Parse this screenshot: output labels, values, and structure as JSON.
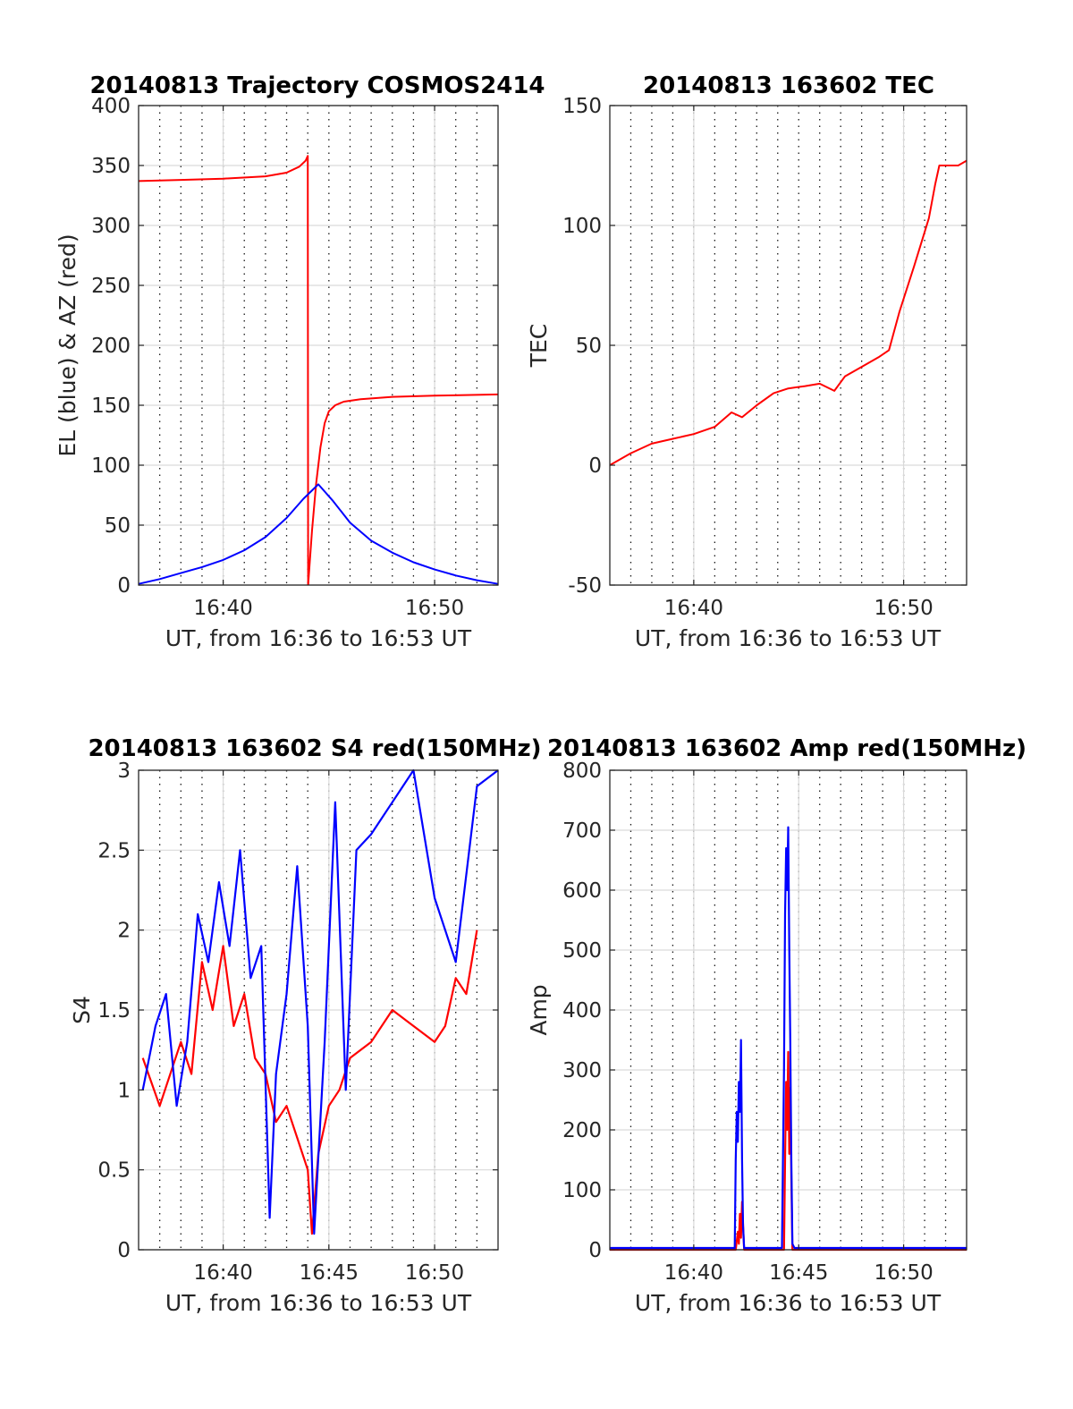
{
  "chart_data": [
    {
      "type": "line",
      "title": "20140813 Trajectory COSMOS2414",
      "xlabel": "UT, from 16:36 to 16:53 UT",
      "ylabel": "EL (blue) & AZ (red)",
      "xlim": [
        36,
        53
      ],
      "ylim": [
        0,
        400
      ],
      "xticks": [
        {
          "v": 40,
          "label": "16:40"
        },
        {
          "v": 50,
          "label": "16:50"
        }
      ],
      "yticks": [
        0,
        50,
        100,
        150,
        200,
        250,
        300,
        350,
        400
      ],
      "grid": "on",
      "series": [
        {
          "color": "#ff0000",
          "x": [
            36,
            38,
            40,
            42,
            43,
            43.6,
            43.9,
            44.0,
            44.02
          ],
          "y": [
            337,
            338,
            339,
            341,
            344,
            349,
            354,
            358,
            0
          ]
        },
        {
          "color": "#ff0000",
          "x": [
            44.02,
            44.2,
            44.4,
            44.6,
            44.8,
            45.0,
            45.3,
            45.7,
            46.5,
            48,
            50,
            53
          ],
          "y": [
            0,
            45,
            85,
            115,
            135,
            145,
            150,
            153,
            155,
            157,
            158,
            159
          ]
        },
        {
          "color": "#0000ff",
          "x": [
            36,
            37,
            38,
            39,
            40,
            41,
            42,
            43,
            43.8,
            44.5,
            45.2,
            46,
            47,
            48,
            49,
            50,
            51,
            52,
            53
          ],
          "y": [
            1,
            5,
            10,
            15,
            21,
            29,
            40,
            56,
            72,
            84,
            70,
            52,
            37,
            27,
            19,
            13,
            8,
            4,
            1
          ]
        }
      ]
    },
    {
      "type": "line",
      "title": "20140813 163602 TEC",
      "xlabel": "UT, from 16:36 to 16:53 UT",
      "ylabel": "TEC",
      "xlim": [
        36,
        53
      ],
      "ylim": [
        -50,
        150
      ],
      "xticks": [
        {
          "v": 40,
          "label": "16:40"
        },
        {
          "v": 50,
          "label": "16:50"
        }
      ],
      "yticks": [
        -50,
        0,
        50,
        100,
        150
      ],
      "grid": "on",
      "series": [
        {
          "color": "#ff0000",
          "x": [
            36,
            37,
            38,
            39,
            40,
            41,
            41.8,
            42.3,
            43,
            43.8,
            44.5,
            45.3,
            46,
            46.7,
            47.2,
            48,
            48.8,
            49.3,
            49.8,
            50.5,
            51.2,
            51.5,
            51.7,
            52.1,
            52.6,
            53
          ],
          "y": [
            0,
            5,
            9,
            11,
            13,
            16,
            22,
            20,
            25,
            30,
            32,
            33,
            34,
            31,
            37,
            41,
            45,
            48,
            64,
            83,
            103,
            117,
            125,
            125,
            125,
            127
          ]
        }
      ]
    },
    {
      "type": "line",
      "title": "20140813 163602 S4 red(150MHz)",
      "xlabel": "UT, from 16:36 to 16:53 UT",
      "ylabel": "S4",
      "xlim": [
        36,
        53
      ],
      "ylim": [
        0,
        3
      ],
      "xticks": [
        {
          "v": 40,
          "label": "16:40"
        },
        {
          "v": 45,
          "label": "16:45"
        },
        {
          "v": 50,
          "label": "16:50"
        }
      ],
      "yticks": [
        0,
        0.5,
        1,
        1.5,
        2,
        2.5,
        3
      ],
      "grid": "on",
      "series": [
        {
          "color": "#ff0000",
          "x": [
            36.2,
            37,
            38,
            38.5,
            39,
            39.5,
            40,
            40.5,
            41,
            41.5,
            42,
            42.5,
            43,
            43.5,
            44,
            44.2,
            44.5,
            45,
            45.5,
            46,
            47,
            48,
            49,
            50,
            50.5,
            51,
            51.5,
            52
          ],
          "y": [
            1.2,
            0.9,
            1.3,
            1.1,
            1.8,
            1.5,
            1.9,
            1.4,
            1.6,
            1.2,
            1.1,
            0.8,
            0.9,
            0.7,
            0.5,
            0.1,
            0.6,
            0.9,
            1.0,
            1.2,
            1.3,
            1.5,
            1.4,
            1.3,
            1.4,
            1.7,
            1.6,
            2.0
          ]
        },
        {
          "color": "#0000ff",
          "x": [
            36.2,
            36.8,
            37.3,
            37.8,
            38.3,
            38.8,
            39.3,
            39.8,
            40.3,
            40.8,
            41.3,
            41.8,
            42.2,
            42.5,
            43,
            43.5,
            44,
            44.3,
            44.8,
            45.3,
            45.8,
            46.3,
            47,
            48,
            49,
            50,
            51,
            52,
            53
          ],
          "y": [
            1.0,
            1.4,
            1.6,
            0.9,
            1.3,
            2.1,
            1.8,
            2.3,
            1.9,
            2.5,
            1.7,
            1.9,
            0.2,
            1.1,
            1.6,
            2.4,
            1.4,
            0.1,
            1.3,
            2.8,
            1.0,
            2.5,
            2.6,
            2.8,
            3.0,
            2.2,
            1.8,
            2.9,
            3.0
          ]
        }
      ]
    },
    {
      "type": "line",
      "title": "20140813 163602 Amp red(150MHz)",
      "xlabel": "UT, from 16:36 to 16:53 UT",
      "ylabel": "Amp",
      "xlim": [
        36,
        53
      ],
      "ylim": [
        0,
        800
      ],
      "xticks": [
        {
          "v": 40,
          "label": "16:40"
        },
        {
          "v": 45,
          "label": "16:45"
        },
        {
          "v": 50,
          "label": "16:50"
        }
      ],
      "yticks": [
        0,
        100,
        200,
        300,
        400,
        500,
        600,
        700,
        800
      ],
      "grid": "on",
      "series": [
        {
          "color": "#ff0000",
          "x": [
            36,
            42,
            42.1,
            42.15,
            42.2,
            42.25,
            42.3,
            42.4,
            44.3,
            44.35,
            44.4,
            44.45,
            44.5,
            44.55,
            44.6,
            44.65,
            44.7,
            53
          ],
          "y": [
            0,
            0,
            30,
            10,
            60,
            20,
            80,
            0,
            0,
            150,
            280,
            200,
            330,
            160,
            270,
            120,
            0,
            0
          ]
        },
        {
          "color": "#0000ff",
          "x": [
            36,
            41.95,
            42.0,
            42.05,
            42.1,
            42.15,
            42.2,
            42.25,
            42.3,
            42.35,
            42.4,
            44.2,
            44.3,
            44.35,
            44.4,
            44.45,
            44.5,
            44.55,
            44.6,
            44.65,
            44.7,
            44.8,
            53
          ],
          "y": [
            3,
            3,
            150,
            230,
            180,
            280,
            230,
            350,
            150,
            40,
            3,
            3,
            300,
            560,
            670,
            600,
            705,
            500,
            350,
            150,
            10,
            3,
            3
          ]
        }
      ]
    }
  ]
}
